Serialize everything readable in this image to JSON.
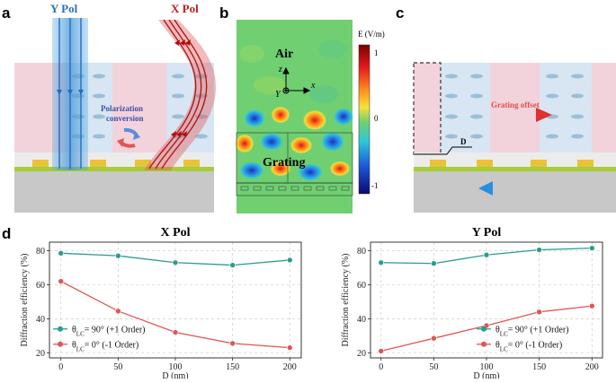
{
  "panels": {
    "a": {
      "label": "a",
      "ypol": "Y Pol",
      "xpol": "X Pol",
      "conversion_line1": "Polarization",
      "conversion_line2": "conversion"
    },
    "b": {
      "label": "b",
      "air": "Air",
      "grating": "Grating",
      "axis_z": "z",
      "axis_y": "Y",
      "axis_x": "x",
      "colorbar_title": "E (V/m)",
      "colorbar_ticks": [
        "1",
        "0",
        "-1"
      ]
    },
    "c": {
      "label": "c",
      "grating_offset": "Grating offset",
      "d_label": "D"
    },
    "d": {
      "label": "d"
    }
  },
  "colors": {
    "teal": "#2a9d8f",
    "red": "#e05555",
    "lc_pink": "#f3d3db",
    "lc_blue": "#d7e6f2",
    "gold": "#e8c33a",
    "green": "#a8cc3a",
    "substrate": "#c8c8c8",
    "field_bg": "#6fcf71"
  },
  "chart_data": [
    {
      "type": "line",
      "title": "X Pol",
      "xlabel": "D (nm)",
      "ylabel": "Diffraction efficiency (%)",
      "xlim": [
        -10,
        210
      ],
      "ylim": [
        17,
        85
      ],
      "x_ticks": [
        0,
        50,
        100,
        150,
        200
      ],
      "y_ticks": [
        20,
        40,
        60,
        80
      ],
      "x_tick_labels": [
        "0",
        "50",
        "100",
        "150",
        "200"
      ],
      "y_tick_labels": [
        "20",
        "40",
        "60",
        "80"
      ],
      "x": [
        0,
        50,
        100,
        150,
        200
      ],
      "series": [
        {
          "name": "θLC= 90°  (+1 Order)",
          "legend_main": "θ",
          "legend_sub": "LC",
          "legend_tail": "= 90°  (+1 Order)",
          "color": "#2a9d8f",
          "values": [
            78.5,
            77,
            73,
            71.5,
            74.5
          ]
        },
        {
          "name": "θLC= 0°     (-1 Order)",
          "legend_main": "θ",
          "legend_sub": "LC",
          "legend_tail": "= 0°     (-1 Order)",
          "color": "#e05555",
          "values": [
            62,
            44.5,
            32,
            25.5,
            23
          ]
        }
      ],
      "legend": "left-bottom"
    },
    {
      "type": "line",
      "title": "Y Pol",
      "xlabel": "D (nm)",
      "ylabel": "Diffraction efficiency (%)",
      "xlim": [
        -10,
        210
      ],
      "ylim": [
        17,
        85
      ],
      "x_ticks": [
        0,
        50,
        100,
        150,
        200
      ],
      "y_ticks": [
        20,
        40,
        60,
        80
      ],
      "x_tick_labels": [
        "0",
        "50",
        "100",
        "150",
        "200"
      ],
      "y_tick_labels": [
        "20",
        "40",
        "60",
        "80"
      ],
      "x": [
        0,
        50,
        100,
        150,
        200
      ],
      "series": [
        {
          "name": "θLC= 90°  (+1 Order)",
          "legend_main": "θ",
          "legend_sub": "LC",
          "legend_tail": "= 90°  (+1 Order)",
          "color": "#2a9d8f",
          "values": [
            73,
            72.5,
            77.5,
            80.5,
            81.5
          ]
        },
        {
          "name": "θLC= 0°     (-1 Order)",
          "legend_main": "θ",
          "legend_sub": "LC",
          "legend_tail": "= 0°     (-1 Order)",
          "color": "#e05555",
          "values": [
            21,
            28.5,
            36,
            44,
            47.5
          ]
        }
      ],
      "legend": "right-bottom"
    }
  ]
}
